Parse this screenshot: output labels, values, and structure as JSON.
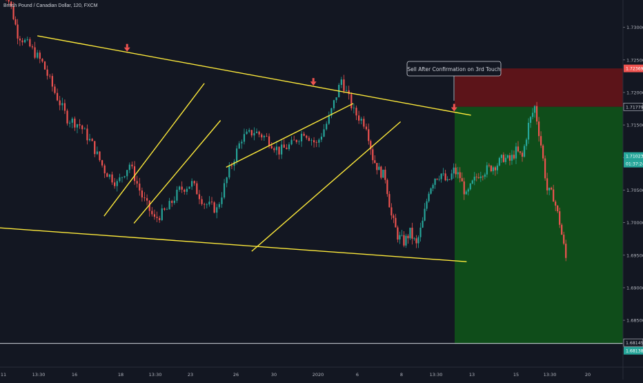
{
  "symbol": {
    "title": "British Pound / Canadian Dollar, 120, FXCM"
  },
  "annotation": {
    "text": "Sell After Confirmation on 3rd Touch"
  },
  "colors": {
    "background": "#131722",
    "up_candle": "#26a69a",
    "down_candle": "#ef5350",
    "trendline": "#ffeb3b",
    "stop_zone": "#5c1419",
    "target_zone": "#0f4d1a",
    "axis_text": "#b2b5be"
  },
  "chart_data": {
    "type": "candlestick",
    "title": "",
    "xlabel": "",
    "ylabel": "",
    "ylim": [
      1.6778,
      1.7342
    ],
    "y_ticks": [
      "1.73000",
      "1.72500",
      "1.72000",
      "1.71500",
      "1.71000",
      "1.70500",
      "1.70000",
      "1.69500",
      "1.69000",
      "1.68500"
    ],
    "x_ticks": [
      "11",
      "13:30",
      "16",
      "18",
      "13:30",
      "23",
      "26",
      "30",
      "2020",
      "6",
      "8",
      "13:30",
      "13",
      "15",
      "13:30",
      "20"
    ],
    "price_labels": [
      {
        "value": "1.72369",
        "role": "stop"
      },
      {
        "value": "1.71779",
        "role": "entry"
      },
      {
        "value": "1.71023",
        "role": "current"
      },
      {
        "value": "01:37:24",
        "role": "countdown"
      },
      {
        "value": "1.68145",
        "role": "horizontal-line"
      },
      {
        "value": "1.68138",
        "role": "target"
      }
    ],
    "position": {
      "side": "short",
      "entry": 1.71779,
      "stop": 1.72369,
      "target": 1.68138
    },
    "horizontal_line": 1.68145,
    "touch_markers": 3,
    "trendlines": [
      {
        "name": "upper",
        "from": [
          0.06,
          1.7287
        ],
        "to": [
          0.756,
          1.7165
        ]
      },
      {
        "name": "lower",
        "from": [
          0.0,
          1.6992
        ],
        "to": [
          0.749,
          1.694
        ]
      },
      {
        "name": "channel-1a",
        "from": [
          0.167,
          1.701
        ],
        "to": [
          0.328,
          1.7214
        ]
      },
      {
        "name": "channel-1b",
        "from": [
          0.215,
          1.6999
        ],
        "to": [
          0.354,
          1.7157
        ]
      },
      {
        "name": "channel-2a",
        "from": [
          0.363,
          1.7085
        ],
        "to": [
          0.567,
          1.7183
        ]
      },
      {
        "name": "channel-2b",
        "from": [
          0.404,
          1.6956
        ],
        "to": [
          0.643,
          1.7155
        ]
      }
    ],
    "candles_note": "price path approximated from visual",
    "price_path": [
      [
        0.0,
        1.7385
      ],
      [
        0.02,
        1.733
      ],
      [
        0.03,
        1.729
      ],
      [
        0.05,
        1.727
      ],
      [
        0.07,
        1.7245
      ],
      [
        0.09,
        1.72
      ],
      [
        0.11,
        1.716
      ],
      [
        0.13,
        1.715
      ],
      [
        0.15,
        1.712
      ],
      [
        0.17,
        1.708
      ],
      [
        0.19,
        1.706
      ],
      [
        0.21,
        1.709
      ],
      [
        0.23,
        1.704
      ],
      [
        0.25,
        1.7005
      ],
      [
        0.27,
        1.702
      ],
      [
        0.29,
        1.705
      ],
      [
        0.31,
        1.706
      ],
      [
        0.33,
        1.703
      ],
      [
        0.35,
        1.702
      ],
      [
        0.37,
        1.708
      ],
      [
        0.39,
        1.713
      ],
      [
        0.41,
        1.714
      ],
      [
        0.43,
        1.713
      ],
      [
        0.45,
        1.711
      ],
      [
        0.47,
        1.712
      ],
      [
        0.49,
        1.714
      ],
      [
        0.51,
        1.712
      ],
      [
        0.53,
        1.716
      ],
      [
        0.55,
        1.722
      ],
      [
        0.57,
        1.717
      ],
      [
        0.59,
        1.715
      ],
      [
        0.6,
        1.71
      ],
      [
        0.61,
        1.708
      ],
      [
        0.62,
        1.707
      ],
      [
        0.63,
        1.701
      ],
      [
        0.64,
        1.698
      ],
      [
        0.65,
        1.697
      ],
      [
        0.66,
        1.6985
      ],
      [
        0.67,
        1.6965
      ],
      [
        0.68,
        1.7
      ],
      [
        0.69,
        1.705
      ],
      [
        0.7,
        1.707
      ],
      [
        0.71,
        1.7075
      ],
      [
        0.72,
        1.706
      ],
      [
        0.73,
        1.708
      ],
      [
        0.74,
        1.707
      ],
      [
        0.75,
        1.704
      ],
      [
        0.76,
        1.706
      ],
      [
        0.77,
        1.7075
      ],
      [
        0.78,
        1.708
      ],
      [
        0.79,
        1.7085
      ],
      [
        0.8,
        1.709
      ],
      [
        0.81,
        1.71
      ],
      [
        0.82,
        1.7095
      ],
      [
        0.83,
        1.711
      ],
      [
        0.84,
        1.71
      ],
      [
        0.85,
        1.715
      ],
      [
        0.86,
        1.7178
      ],
      [
        0.87,
        1.712
      ],
      [
        0.88,
        1.705
      ],
      [
        0.89,
        1.704
      ],
      [
        0.9,
        1.7
      ],
      [
        0.91,
        1.6945
      ]
    ]
  }
}
